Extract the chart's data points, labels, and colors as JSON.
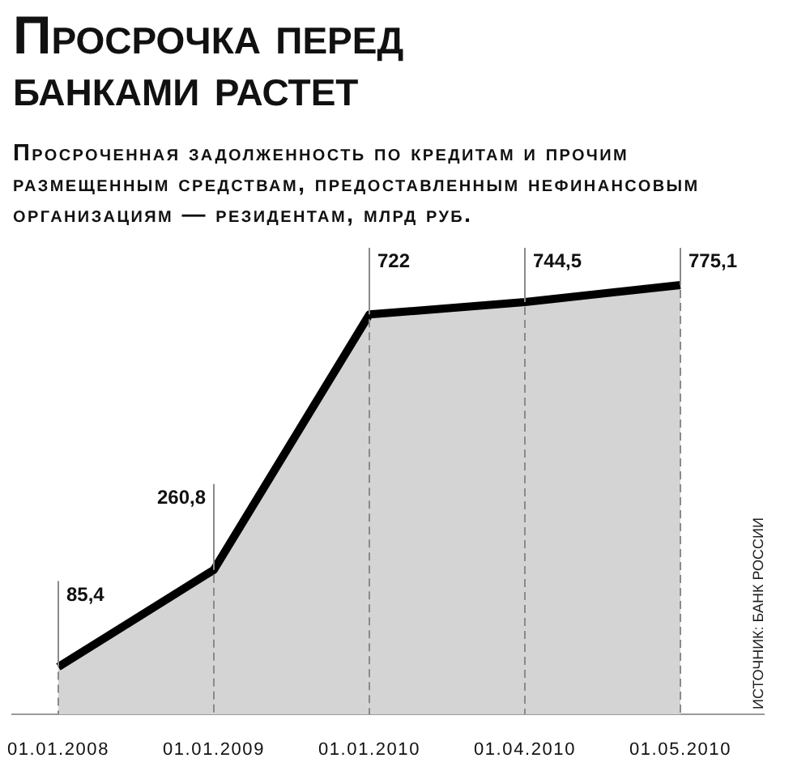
{
  "chart_data": {
    "type": "area",
    "title": "Просрочка перед банками растет",
    "subtitle": "Просроченная задолженность по кредитам и прочим размещенным средствам, предоставленным нефинансовым организациям — резидентам, млрд руб.",
    "annotations": [
      "ИСТОЧНИК: БАНК РОССИИ"
    ],
    "categories": [
      "01.01.2008",
      "01.01.2009",
      "01.01.2010",
      "01.04.2010",
      "01.05.2010"
    ],
    "values": [
      85.4,
      260.8,
      722,
      744.5,
      775.1
    ],
    "value_labels": [
      "85,4",
      "260,8",
      "722",
      "744,5",
      "775,1"
    ],
    "color": "#d4d4d4",
    "grid": "x",
    "tick_labels": "x"
  }
}
